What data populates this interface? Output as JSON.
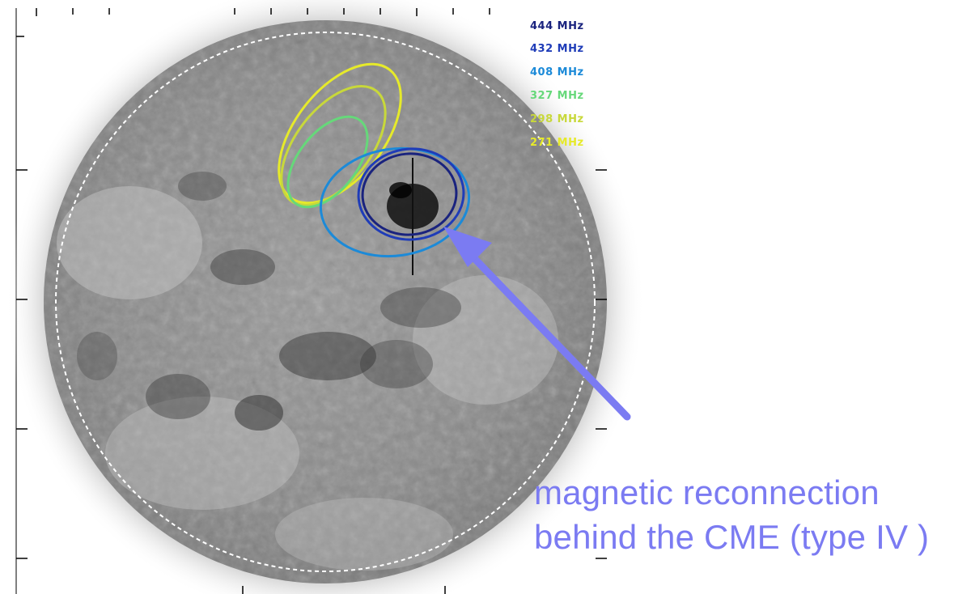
{
  "legend": {
    "entries": [
      {
        "label": "444 MHz",
        "color": "#1a237e"
      },
      {
        "label": "432 MHz",
        "color": "#1f3cb8"
      },
      {
        "label": "408 MHz",
        "color": "#1c8ad8"
      },
      {
        "label": "327 MHz",
        "color": "#66d87a"
      },
      {
        "label": "298 MHz",
        "color": "#c8d83a"
      },
      {
        "label": "271 MHz",
        "color": "#e6ea2a"
      }
    ]
  },
  "annotation": {
    "line1": "magnetic reconnection",
    "line2": "behind the CME  (type IV )",
    "arrow_color": "#7b7bf2"
  },
  "metadata": {
    "line1": "",
    "line2": "",
    "line3": ""
  },
  "colors": {
    "disk_fill": "#8c8c8c",
    "limb_dashes": "#ffffff",
    "frame": "#000000"
  }
}
